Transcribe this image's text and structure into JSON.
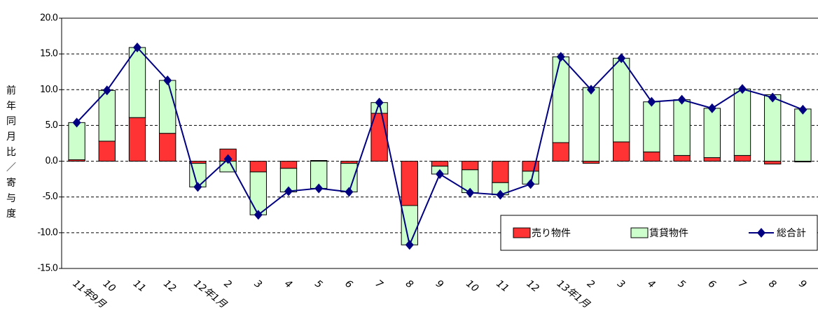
{
  "chart_data": {
    "type": "stacked-bar-line",
    "y_label": "前年同月比／寄与度",
    "categories": [
      "11年9月",
      "10",
      "11",
      "12",
      "12年1月",
      "2",
      "3",
      "4",
      "5",
      "6",
      "7",
      "8",
      "9",
      "10",
      "11",
      "12",
      "13年1月",
      "2",
      "3",
      "4",
      "5",
      "6",
      "7",
      "8",
      "9"
    ],
    "series": [
      {
        "name": "売り物件",
        "type": "bar",
        "color": "#ff3333",
        "values": [
          0.2,
          2.8,
          6.1,
          3.9,
          -0.3,
          1.7,
          -1.5,
          -1.0,
          0.1,
          -0.3,
          6.7,
          -6.2,
          -0.7,
          -1.2,
          -3.0,
          -1.4,
          2.6,
          -0.3,
          2.7,
          1.3,
          0.8,
          0.5,
          0.8,
          -0.4,
          -0.1
        ]
      },
      {
        "name": "賃貸物件",
        "type": "bar",
        "color": "#ccffcc",
        "values": [
          5.2,
          7.1,
          9.8,
          7.4,
          -3.3,
          -1.5,
          -6.0,
          -3.3,
          -3.8,
          -4.0,
          1.5,
          -5.5,
          -1.1,
          -3.2,
          -1.7,
          -1.8,
          12.0,
          10.3,
          11.7,
          7.0,
          7.8,
          6.9,
          9.3,
          9.3,
          7.3
        ]
      },
      {
        "name": "総合計",
        "type": "line",
        "color": "#000080",
        "values": [
          5.4,
          9.9,
          15.9,
          11.3,
          -3.6,
          0.3,
          -7.5,
          -4.2,
          -3.8,
          -4.3,
          8.2,
          -11.7,
          -1.8,
          -4.4,
          -4.7,
          -3.2,
          14.6,
          10.0,
          14.4,
          8.3,
          8.6,
          7.4,
          10.1,
          8.9,
          7.2
        ]
      }
    ],
    "ylim": [
      -15,
      20
    ],
    "yticks": [
      {
        "value": -15,
        "label": "-15.0"
      },
      {
        "value": -10,
        "label": "-10.0"
      },
      {
        "value": -5,
        "label": "-5.0"
      },
      {
        "value": 0,
        "label": "0.0"
      },
      {
        "value": 5,
        "label": "5.0"
      },
      {
        "value": 10,
        "label": "10.0"
      },
      {
        "value": 15,
        "label": "15.0"
      },
      {
        "value": 20,
        "label": "20.0"
      }
    ],
    "grid": true,
    "legend": "bottom-right"
  }
}
